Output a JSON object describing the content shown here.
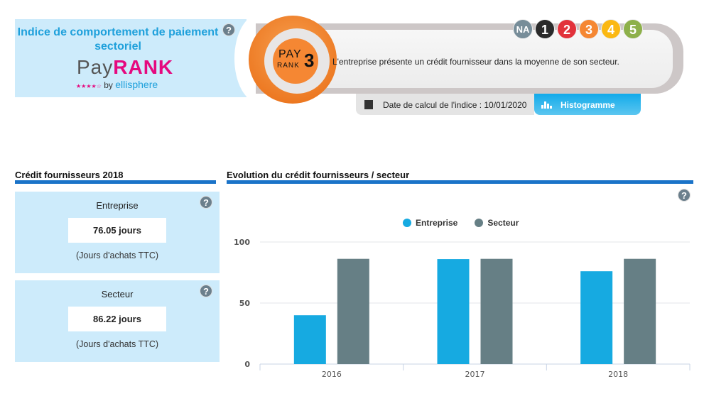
{
  "brand": {
    "title": "Indice de comportement de paiement sectoriel",
    "logo_pay": "Pay",
    "logo_rank": "RANK",
    "logo_stars": "★★★★☆",
    "logo_by": "by",
    "logo_ellisphere": "ellisphere",
    "help": "?"
  },
  "rank": {
    "badge_pay": "PAY",
    "badge_rank": "RANK",
    "value": "3",
    "message": "L'entreprise présente un crédit fournisseur dans la moyenne de son secteur.",
    "scale": [
      {
        "label": "NA",
        "color": "#778d99"
      },
      {
        "label": "1",
        "color": "#2b2b2b"
      },
      {
        "label": "2",
        "color": "#e2323b"
      },
      {
        "label": "3",
        "color": "#f58733"
      },
      {
        "label": "4",
        "color": "#fbb812"
      },
      {
        "label": "5",
        "color": "#8db04a"
      }
    ],
    "date_label": "Date de calcul de l'indice : 10/01/2020",
    "histogram_button": "Histogramme"
  },
  "credit": {
    "title": "Crédit fournisseurs 2018",
    "cards": [
      {
        "label": "Entreprise",
        "value": "76.05 jours",
        "unit": "(Jours d'achats TTC)"
      },
      {
        "label": "Secteur",
        "value": "86.22 jours",
        "unit": "(Jours d'achats TTC)"
      }
    ],
    "help": "?"
  },
  "evolution": {
    "title": "Evolution du crédit fournisseurs / secteur",
    "help": "?"
  },
  "chart_data": {
    "type": "bar",
    "categories": [
      "2016",
      "2017",
      "2018"
    ],
    "series": [
      {
        "name": "Entreprise",
        "color": "#16aae1",
        "values": [
          40,
          86,
          76.05
        ]
      },
      {
        "name": "Secteur",
        "color": "#667f85",
        "values": [
          86.22,
          86.22,
          86.22
        ]
      }
    ],
    "yticks": [
      "0",
      "50",
      "100"
    ],
    "ylim": [
      0,
      100
    ],
    "grid": true,
    "legend": "top-center"
  }
}
